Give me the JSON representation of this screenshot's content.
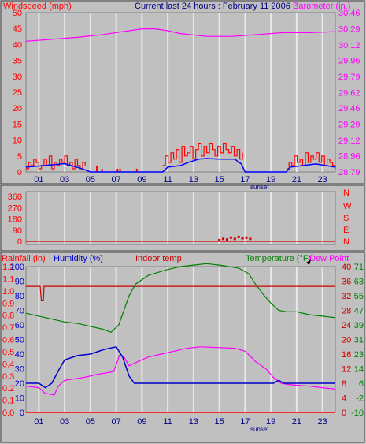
{
  "title": "Current last 24 hours : February 11 2006",
  "colors": {
    "background": "#c0c0c0",
    "plot": "#c0c0c0",
    "grid": "#e8e8e8",
    "wind_gust": "#ff0000",
    "wind_avg": "#0000ff",
    "barometer": "#ff00ff",
    "direction": "#cc0000",
    "humidity": "#0000cc",
    "indoor": "#cc0000",
    "temperature": "#008000",
    "dew_point": "#ff00ff",
    "rainfall": "#ff0000",
    "dark_label": "#000080"
  },
  "chart_data": [
    {
      "type": "line",
      "panel": "wind-barometer",
      "labels": {
        "left": "Windspeed (mph)",
        "right": "Barometer (in.)",
        "sunset": "sunset"
      },
      "x_ticks": [
        "01",
        "03",
        "05",
        "07",
        "09",
        "11",
        "13",
        "15",
        "17",
        "19",
        "21",
        "23"
      ],
      "left_axis": {
        "ticks": [
          0,
          5,
          10,
          15,
          20,
          25,
          30,
          35,
          40,
          45,
          50
        ],
        "range": [
          0,
          50
        ]
      },
      "right_axis": {
        "ticks": [
          "28.79",
          "28.96",
          "29.12",
          "29.29",
          "29.46",
          "29.62",
          "29.79",
          "29.96",
          "30.12",
          "30.29",
          "30.46"
        ],
        "range": [
          28.79,
          30.46
        ]
      },
      "series": [
        {
          "name": "Windspeed",
          "kind": "gust",
          "segments": [
            {
              "x0": 0,
              "x1": 4.6,
              "values": [
                1,
                3,
                2,
                4,
                3,
                1,
                2,
                4,
                2,
                5,
                1,
                3,
                2,
                4,
                3,
                5,
                2,
                3,
                1,
                4,
                2,
                1,
                3,
                2
              ]
            },
            {
              "x0": 10.6,
              "x1": 16.8,
              "values": [
                2,
                5,
                3,
                6,
                4,
                7,
                3,
                8,
                5,
                6,
                8,
                4,
                7,
                9,
                5,
                8,
                6,
                9,
                7,
                5,
                8,
                6,
                9,
                7,
                6,
                8,
                5,
                7,
                4,
                6
              ]
            },
            {
              "x0": 20.2,
              "x1": 24,
              "values": [
                1,
                3,
                2,
                5,
                3,
                4,
                2,
                6,
                3,
                5,
                4,
                6,
                3,
                5,
                2,
                4,
                3,
                2,
                1
              ]
            }
          ],
          "spikes": [
            {
              "x": 5.5,
              "value": 2
            },
            {
              "x": 5.9,
              "value": 1
            },
            {
              "x": 7.1,
              "value": 1
            },
            {
              "x": 7.3,
              "value": 1
            },
            {
              "x": 8.6,
              "value": 1
            }
          ]
        },
        {
          "name": "Wind Avg",
          "kind": "average",
          "points": [
            [
              0,
              1.5
            ],
            [
              1.5,
              2
            ],
            [
              3,
              2.6
            ],
            [
              4.2,
              1.2
            ],
            [
              5,
              0
            ],
            [
              10.6,
              0
            ],
            [
              11,
              1.5
            ],
            [
              12,
              2
            ],
            [
              12.6,
              3
            ],
            [
              13.4,
              4
            ],
            [
              14,
              4.2
            ],
            [
              15,
              4
            ],
            [
              16.2,
              4
            ],
            [
              16.7,
              2.5
            ],
            [
              17,
              0
            ],
            [
              20.2,
              0
            ],
            [
              20.5,
              1.5
            ],
            [
              21.5,
              2
            ],
            [
              22.5,
              2.5
            ],
            [
              24,
              1.5
            ]
          ]
        },
        {
          "name": "Barometer",
          "axis": "right",
          "points": [
            [
              0,
              30.16
            ],
            [
              2,
              30.18
            ],
            [
              4,
              30.2
            ],
            [
              6,
              30.23
            ],
            [
              8,
              30.27
            ],
            [
              9,
              30.29
            ],
            [
              10,
              30.29
            ],
            [
              11,
              30.27
            ],
            [
              12,
              30.24
            ],
            [
              14,
              30.21
            ],
            [
              16,
              30.21
            ],
            [
              17,
              30.22
            ],
            [
              18,
              30.23
            ],
            [
              20,
              30.25
            ],
            [
              22,
              30.25
            ],
            [
              24,
              30.26
            ]
          ]
        }
      ]
    },
    {
      "type": "scatter",
      "panel": "wind-direction",
      "y_ticks": [
        0,
        90,
        180,
        270,
        360
      ],
      "compass": [
        "N",
        "W",
        "S",
        "E",
        "N"
      ],
      "ylim": [
        0,
        360
      ],
      "points": [
        [
          15,
          10
        ],
        [
          15.3,
          20
        ],
        [
          15.6,
          15
        ],
        [
          15.9,
          30
        ],
        [
          16.2,
          20
        ],
        [
          16.5,
          35
        ],
        [
          16.8,
          25
        ],
        [
          17.1,
          30
        ],
        [
          17.4,
          20
        ]
      ]
    },
    {
      "type": "line",
      "panel": "temperature-humidity-rain",
      "labels": {
        "rainfall": "Rainfall (in)",
        "humidity": "Humidity (%)",
        "indoor": "Indoor temp",
        "temperature": "Temperature (°F)",
        "dew_point": "Dew Point",
        "sunset": "sunset"
      },
      "x_ticks": [
        "01",
        "03",
        "05",
        "07",
        "09",
        "11",
        "13",
        "15",
        "17",
        "19",
        "21",
        "23"
      ],
      "rain_ticks": [
        "0.0",
        "0.1",
        "0.2",
        "0.3",
        "0.4",
        "0.5",
        "0.6",
        "0.7",
        "0.8",
        "0.9",
        "1.0",
        "1.1",
        "1.2"
      ],
      "humidity_ticks": [
        0,
        10,
        20,
        30,
        40,
        50,
        60,
        70,
        80,
        90,
        100
      ],
      "celsius_ticks": [
        0,
        4,
        8,
        12,
        16,
        20,
        24,
        28,
        32,
        36,
        40
      ],
      "fahrenheit_ticks": [
        -10,
        -2,
        6,
        14,
        23,
        31,
        39,
        47,
        55,
        63,
        71
      ],
      "series": [
        {
          "name": "Temperature",
          "unit": "°F",
          "points": [
            [
              0,
              68
            ],
            [
              1,
              66
            ],
            [
              2,
              64
            ],
            [
              3,
              62
            ],
            [
              4,
              61
            ],
            [
              5,
              59
            ],
            [
              6,
              57
            ],
            [
              6.6,
              55
            ],
            [
              7.2,
              60
            ],
            [
              7.6,
              70
            ],
            [
              8,
              80
            ],
            [
              8.5,
              88
            ],
            [
              9.5,
              94
            ],
            [
              11,
              98
            ],
            [
              12,
              100
            ],
            [
              13,
              101
            ],
            [
              14,
              102
            ],
            [
              15,
              101
            ],
            [
              16.5,
              99
            ],
            [
              17.3,
              95
            ],
            [
              17.8,
              88
            ],
            [
              18.4,
              81
            ],
            [
              19,
              75
            ],
            [
              19.6,
              70
            ],
            [
              20.2,
              69
            ],
            [
              21,
              69
            ],
            [
              22,
              67
            ],
            [
              23,
              66
            ],
            [
              24,
              65
            ]
          ]
        },
        {
          "name": "Dew Point",
          "points": [
            [
              0,
              18
            ],
            [
              1,
              17
            ],
            [
              1.5,
              13
            ],
            [
              2.2,
              12
            ],
            [
              2.5,
              18
            ],
            [
              3,
              22
            ],
            [
              4.5,
              24
            ],
            [
              5.5,
              26
            ],
            [
              6.8,
              28
            ],
            [
              7.3,
              40
            ],
            [
              7.6,
              38
            ],
            [
              8,
              32
            ],
            [
              8.7,
              35
            ],
            [
              9.5,
              38
            ],
            [
              10.5,
              40
            ],
            [
              11.5,
              42
            ],
            [
              12.5,
              44
            ],
            [
              13.5,
              45
            ],
            [
              16.2,
              44
            ],
            [
              17,
              42
            ],
            [
              17.8,
              35
            ],
            [
              18.6,
              30
            ],
            [
              19.2,
              24
            ],
            [
              19.8,
              20
            ],
            [
              20.5,
              19
            ],
            [
              22,
              18
            ],
            [
              23,
              17
            ],
            [
              24,
              16
            ]
          ]
        },
        {
          "name": "Humidity",
          "unit": "%",
          "points": [
            [
              0,
              20
            ],
            [
              1,
              20
            ],
            [
              1.5,
              17
            ],
            [
              2,
              20
            ],
            [
              2.6,
              30
            ],
            [
              3,
              36
            ],
            [
              4,
              39
            ],
            [
              5,
              40
            ],
            [
              6,
              43
            ],
            [
              7,
              45
            ],
            [
              7.5,
              38
            ],
            [
              8,
              25
            ],
            [
              8.4,
              20
            ],
            [
              10,
              20
            ],
            [
              15,
              20
            ],
            [
              19.2,
              20
            ],
            [
              19.6,
              22
            ],
            [
              20,
              20
            ],
            [
              24,
              20
            ]
          ]
        },
        {
          "name": "Indoor temp",
          "points": [
            [
              0,
              60
            ],
            [
              1.1,
              60
            ],
            [
              1.2,
              52
            ],
            [
              1.35,
              52
            ],
            [
              1.4,
              60
            ],
            [
              24,
              60
            ]
          ]
        },
        {
          "name": "Rainfall",
          "unit": "in",
          "points": [
            [
              0,
              0
            ],
            [
              24,
              0
            ]
          ]
        }
      ]
    }
  ]
}
